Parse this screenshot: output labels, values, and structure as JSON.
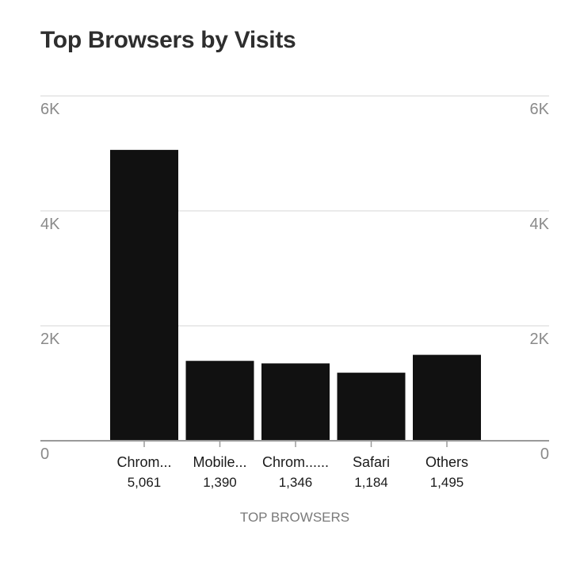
{
  "chart_data": {
    "type": "bar",
    "title": "Top Browsers by Visits",
    "xlabel": "TOP BROWSERS",
    "ylabel": "",
    "categories": [
      "Chrom...",
      "Mobile...",
      "Chrom......",
      "Safari",
      "Others"
    ],
    "values": [
      5061,
      1390,
      1346,
      1184,
      1495
    ],
    "value_labels": [
      "5,061",
      "1,390",
      "1,346",
      "1,184",
      "1,495"
    ],
    "ylim": [
      0,
      6000
    ],
    "y_ticks": [
      0,
      2000,
      4000,
      6000
    ],
    "y_tick_labels": [
      "0",
      "2K",
      "4K",
      "6K"
    ],
    "grid": true,
    "bar_color": "#111111",
    "grid_color": "#e3e3e3",
    "axis_color": "#9a9a9a"
  }
}
